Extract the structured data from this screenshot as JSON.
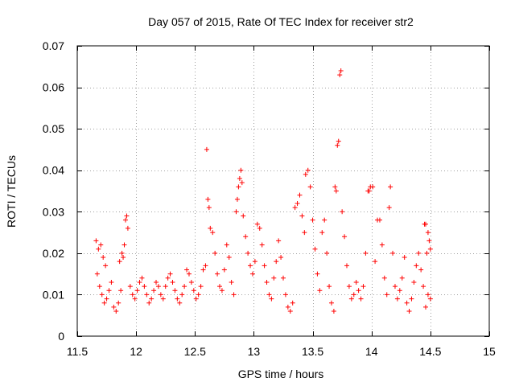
{
  "chart_data": {
    "type": "scatter",
    "title": "Day 057 of 2015, Rate Of TEC Index for receiver str2",
    "xlabel": "GPS time / hours",
    "ylabel": "ROTI / TECUs",
    "xlim": [
      11.5,
      15
    ],
    "ylim": [
      0,
      0.07
    ],
    "x_ticks": [
      11.5,
      12,
      12.5,
      13,
      13.5,
      14,
      14.5,
      15
    ],
    "x_tick_labels": [
      "11.5",
      "12",
      "12.5",
      "13",
      "13.5",
      "14",
      "14.5",
      "15"
    ],
    "y_ticks": [
      0,
      0.01,
      0.02,
      0.03,
      0.04,
      0.05,
      0.06,
      0.07
    ],
    "y_tick_labels": [
      "0",
      "0.01",
      "0.02",
      "0.03",
      "0.04",
      "0.05",
      "0.06",
      "0.07"
    ],
    "grid": true,
    "legend": "none",
    "marker": "+",
    "series": [
      {
        "name": "ROTI",
        "color": "#ff0000",
        "points": [
          [
            11.66,
            0.023
          ],
          [
            11.68,
            0.021
          ],
          [
            11.7,
            0.022
          ],
          [
            11.72,
            0.019
          ],
          [
            11.74,
            0.017
          ],
          [
            11.67,
            0.015
          ],
          [
            11.69,
            0.012
          ],
          [
            11.71,
            0.01
          ],
          [
            11.73,
            0.008
          ],
          [
            11.75,
            0.009
          ],
          [
            11.77,
            0.011
          ],
          [
            11.79,
            0.013
          ],
          [
            11.81,
            0.007
          ],
          [
            11.83,
            0.006
          ],
          [
            11.85,
            0.008
          ],
          [
            11.87,
            0.011
          ],
          [
            11.89,
            0.019
          ],
          [
            11.9,
            0.022
          ],
          [
            11.91,
            0.028
          ],
          [
            11.92,
            0.029
          ],
          [
            11.93,
            0.026
          ],
          [
            11.88,
            0.02
          ],
          [
            11.86,
            0.018
          ],
          [
            11.95,
            0.012
          ],
          [
            11.97,
            0.01
          ],
          [
            11.99,
            0.009
          ],
          [
            12.01,
            0.011
          ],
          [
            12.03,
            0.013
          ],
          [
            12.05,
            0.014
          ],
          [
            12.07,
            0.012
          ],
          [
            12.09,
            0.01
          ],
          [
            12.11,
            0.008
          ],
          [
            12.13,
            0.009
          ],
          [
            12.15,
            0.011
          ],
          [
            12.17,
            0.013
          ],
          [
            12.19,
            0.012
          ],
          [
            12.21,
            0.01
          ],
          [
            12.23,
            0.009
          ],
          [
            12.25,
            0.012
          ],
          [
            12.27,
            0.014
          ],
          [
            12.29,
            0.015
          ],
          [
            12.31,
            0.013
          ],
          [
            12.33,
            0.011
          ],
          [
            12.35,
            0.009
          ],
          [
            12.37,
            0.008
          ],
          [
            12.39,
            0.01
          ],
          [
            12.41,
            0.012
          ],
          [
            12.43,
            0.016
          ],
          [
            12.45,
            0.015
          ],
          [
            12.47,
            0.013
          ],
          [
            12.49,
            0.011
          ],
          [
            12.51,
            0.009
          ],
          [
            12.53,
            0.01
          ],
          [
            12.55,
            0.012
          ],
          [
            12.57,
            0.016
          ],
          [
            12.59,
            0.017
          ],
          [
            12.6,
            0.045
          ],
          [
            12.61,
            0.033
          ],
          [
            12.62,
            0.031
          ],
          [
            12.63,
            0.026
          ],
          [
            12.65,
            0.025
          ],
          [
            12.67,
            0.02
          ],
          [
            12.69,
            0.015
          ],
          [
            12.71,
            0.012
          ],
          [
            12.73,
            0.011
          ],
          [
            12.75,
            0.016
          ],
          [
            12.77,
            0.022
          ],
          [
            12.79,
            0.019
          ],
          [
            12.81,
            0.013
          ],
          [
            12.83,
            0.01
          ],
          [
            12.85,
            0.03
          ],
          [
            12.86,
            0.033
          ],
          [
            12.87,
            0.036
          ],
          [
            12.88,
            0.038
          ],
          [
            12.89,
            0.04
          ],
          [
            12.9,
            0.037
          ],
          [
            12.91,
            0.029
          ],
          [
            12.93,
            0.024
          ],
          [
            12.95,
            0.02
          ],
          [
            12.97,
            0.017
          ],
          [
            12.99,
            0.015
          ],
          [
            13.01,
            0.018
          ],
          [
            13.03,
            0.027
          ],
          [
            13.05,
            0.026
          ],
          [
            13.07,
            0.022
          ],
          [
            13.09,
            0.017
          ],
          [
            13.11,
            0.013
          ],
          [
            13.13,
            0.01
          ],
          [
            13.15,
            0.009
          ],
          [
            13.17,
            0.014
          ],
          [
            13.19,
            0.018
          ],
          [
            13.21,
            0.023
          ],
          [
            13.23,
            0.019
          ],
          [
            13.25,
            0.014
          ],
          [
            13.27,
            0.01
          ],
          [
            13.29,
            0.007
          ],
          [
            13.31,
            0.006
          ],
          [
            13.33,
            0.008
          ],
          [
            13.35,
            0.031
          ],
          [
            13.37,
            0.032
          ],
          [
            13.39,
            0.034
          ],
          [
            13.41,
            0.029
          ],
          [
            13.43,
            0.025
          ],
          [
            13.44,
            0.039
          ],
          [
            13.46,
            0.04
          ],
          [
            13.48,
            0.036
          ],
          [
            13.5,
            0.028
          ],
          [
            13.52,
            0.021
          ],
          [
            13.54,
            0.015
          ],
          [
            13.56,
            0.011
          ],
          [
            13.58,
            0.025
          ],
          [
            13.6,
            0.028
          ],
          [
            13.62,
            0.02
          ],
          [
            13.64,
            0.012
          ],
          [
            13.66,
            0.008
          ],
          [
            13.68,
            0.006
          ],
          [
            13.69,
            0.036
          ],
          [
            13.7,
            0.035
          ],
          [
            13.71,
            0.046
          ],
          [
            13.72,
            0.047
          ],
          [
            13.73,
            0.063
          ],
          [
            13.74,
            0.064
          ],
          [
            13.75,
            0.03
          ],
          [
            13.77,
            0.024
          ],
          [
            13.79,
            0.017
          ],
          [
            13.81,
            0.012
          ],
          [
            13.83,
            0.009
          ],
          [
            13.85,
            0.01
          ],
          [
            13.87,
            0.013
          ],
          [
            13.89,
            0.011
          ],
          [
            13.91,
            0.009
          ],
          [
            13.93,
            0.012
          ],
          [
            13.95,
            0.02
          ],
          [
            13.97,
            0.035
          ],
          [
            13.98,
            0.035
          ],
          [
            13.99,
            0.036
          ],
          [
            14.01,
            0.036
          ],
          [
            14.03,
            0.018
          ],
          [
            14.05,
            0.028
          ],
          [
            14.07,
            0.028
          ],
          [
            14.09,
            0.022
          ],
          [
            14.11,
            0.014
          ],
          [
            14.13,
            0.01
          ],
          [
            14.15,
            0.031
          ],
          [
            14.16,
            0.036
          ],
          [
            14.18,
            0.02
          ],
          [
            14.2,
            0.012
          ],
          [
            14.22,
            0.009
          ],
          [
            14.24,
            0.011
          ],
          [
            14.26,
            0.014
          ],
          [
            14.28,
            0.019
          ],
          [
            14.3,
            0.008
          ],
          [
            14.32,
            0.006
          ],
          [
            14.34,
            0.009
          ],
          [
            14.36,
            0.013
          ],
          [
            14.38,
            0.017
          ],
          [
            14.4,
            0.02
          ],
          [
            14.42,
            0.016
          ],
          [
            14.44,
            0.012
          ],
          [
            14.45,
            0.027
          ],
          [
            14.46,
            0.027
          ],
          [
            14.47,
            0.02
          ],
          [
            14.48,
            0.025
          ],
          [
            14.49,
            0.023
          ],
          [
            14.5,
            0.021
          ],
          [
            14.48,
            0.01
          ],
          [
            14.46,
            0.007
          ],
          [
            14.5,
            0.009
          ]
        ]
      }
    ]
  }
}
